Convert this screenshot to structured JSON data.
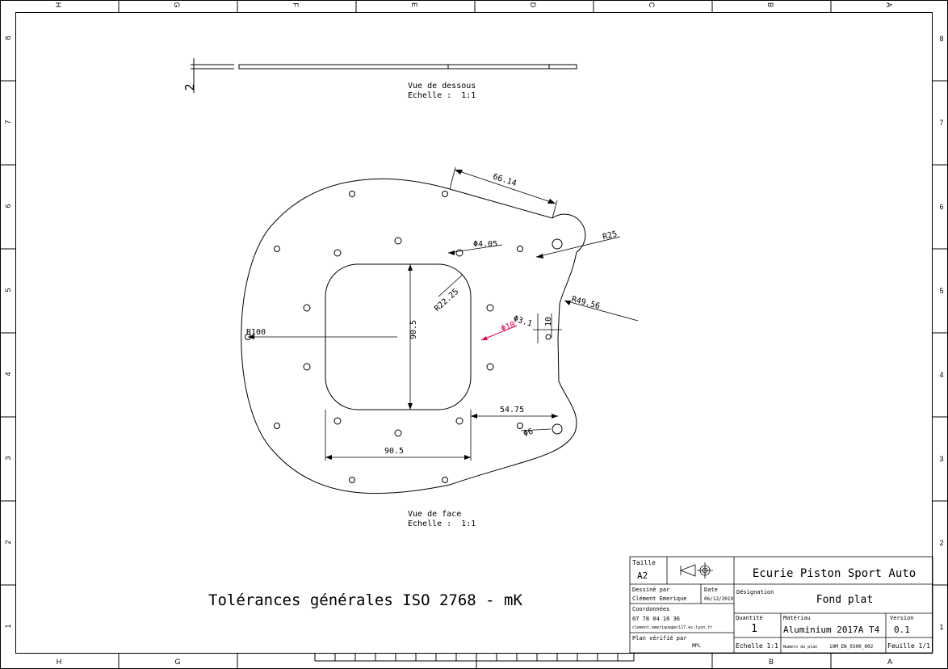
{
  "border": {
    "top_letters": [
      "H",
      "G",
      "F",
      "E",
      "D",
      "C",
      "B",
      "A"
    ],
    "bottom_letters": [
      "H",
      "G",
      "B",
      "A"
    ],
    "side_numbers": [
      "8",
      "7",
      "6",
      "5",
      "4",
      "3",
      "2",
      "1"
    ]
  },
  "views": {
    "bottom_view": {
      "title": "Vue de dessous",
      "scale": "Echelle :  1:1",
      "thickness": "2"
    },
    "front_view": {
      "title": "Vue de face",
      "scale": "Echelle :  1:1"
    }
  },
  "dimensions": {
    "top_edge": "66.14",
    "hole_small": "Φ4.05",
    "corner_radius": "R25",
    "pocket_radius": "R22.25",
    "notch_radius": "R49.56",
    "outer_radius": "R100",
    "pocket_height": "90.5",
    "highlight": "Φ10",
    "hole_mid": "Φ3.1",
    "small_offset": "10",
    "side_offset": "54.75",
    "hole_large": "Φ6",
    "pocket_width": "90.5"
  },
  "tolerances": "Tolérances générales ISO 2768 - mK",
  "title_block": {
    "size_label": "Taille",
    "size_value": "A2",
    "drawn_by_label": "Dessiné par",
    "drawn_by": "Clément Emerique",
    "date_label": "Date",
    "date": "06/12/2019",
    "coords_label": "Coordonnées",
    "phone": "07 78 04 16 36",
    "email": "clement.emerique@ecl17.ec-lyon.fr",
    "checked_label": "Plan vérifié par",
    "checked_by": "MPL",
    "company": "Ecurie Piston Sport Auto",
    "designation_label": "Désignation",
    "designation": "Fond plat",
    "quantity_label": "Quantité",
    "quantity": "1",
    "material_label": "Matériau",
    "material": "Aluminium 2017A T4",
    "version_label": "Version",
    "version": "0.1",
    "scale": "Echelle 1:1",
    "plan_number_label": "Numéro du plan",
    "plan_number": "19M_EN_0300_002",
    "sheet": "Feuille 1/1"
  },
  "colors": {
    "line": "#000000",
    "highlight": "#e0004a"
  }
}
